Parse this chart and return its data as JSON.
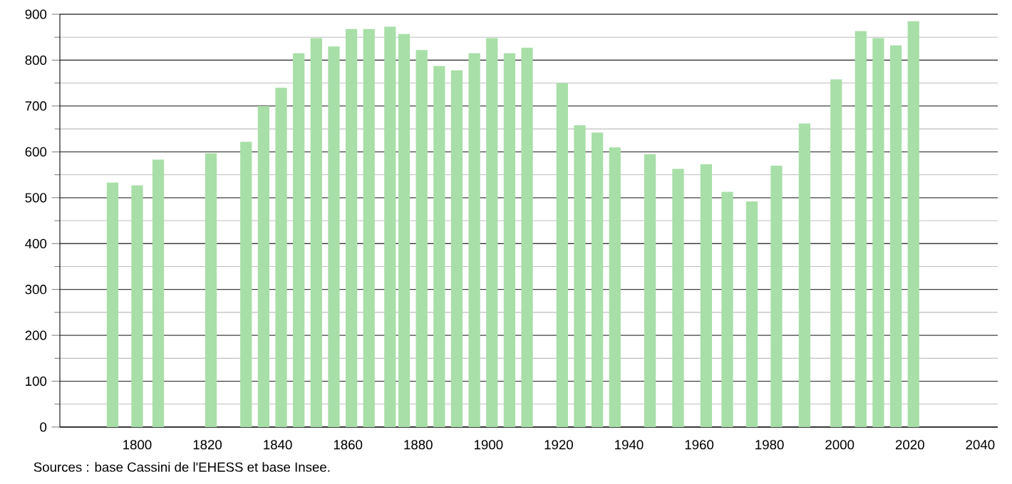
{
  "chart_data": {
    "type": "bar",
    "x": [
      1793,
      1800,
      1806,
      1821,
      1831,
      1836,
      1841,
      1846,
      1851,
      1856,
      1861,
      1866,
      1872,
      1876,
      1881,
      1886,
      1891,
      1896,
      1901,
      1906,
      1911,
      1921,
      1926,
      1931,
      1936,
      1946,
      1954,
      1962,
      1968,
      1975,
      1982,
      1990,
      1999,
      2006,
      2011,
      2016,
      2021
    ],
    "values": [
      533,
      527,
      583,
      597,
      622,
      700,
      740,
      815,
      848,
      830,
      868,
      868,
      873,
      857,
      822,
      787,
      778,
      815,
      848,
      815,
      827,
      750,
      658,
      642,
      610,
      595,
      563,
      573,
      513,
      492,
      570,
      662,
      758,
      863,
      848,
      832,
      885
    ],
    "color": "#a8dfa8",
    "xlim": [
      1778,
      2045
    ],
    "ylim": [
      0,
      900
    ],
    "xticks": [
      1800,
      1820,
      1840,
      1860,
      1880,
      1900,
      1920,
      1940,
      1960,
      1980,
      2000,
      2020,
      2040
    ],
    "yticks": [
      0,
      100,
      200,
      300,
      400,
      500,
      600,
      700,
      800,
      900
    ],
    "grid": "y",
    "annotations": [
      "Sources : base Cassini de l'EHESS et base Insee."
    ]
  }
}
